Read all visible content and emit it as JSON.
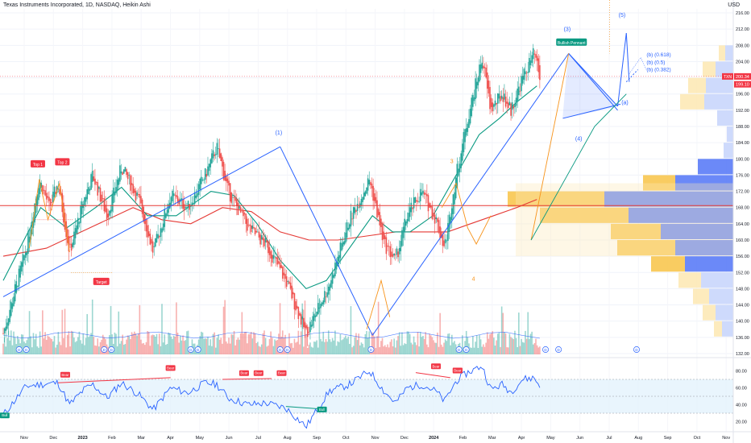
{
  "header": {
    "title": "Texas Instruments Incorporated, 1D, NASDAQ, Heikin Ashi",
    "currency": "USD"
  },
  "colors": {
    "up": "#26a69a",
    "down": "#ef5350",
    "ema_fast": "#089981",
    "ema_slow": "#e53935",
    "wave": "#2962ff",
    "pattern": "#f7931a",
    "rsi": "#2962ff",
    "rsi_band": "#e3f2fd",
    "vp_up": "#f8c650",
    "vp_down": "#5b7cf7",
    "vp_up_light": "#fde9b6",
    "vp_down_light": "#c9d6fc",
    "price_label": "#f23645",
    "pennant": "#089981"
  },
  "chart_data": [
    {
      "type": "candlestick",
      "title": "Texas Instruments Incorporated, 1D, NASDAQ, Heikin Ashi",
      "y_axis": {
        "ticks": [
          132,
          136,
          140,
          144,
          148,
          152,
          156,
          160,
          164,
          168,
          172,
          176,
          180,
          184,
          188,
          192,
          196,
          200,
          204,
          208,
          212,
          216
        ],
        "range": [
          131,
          217
        ],
        "current_price": "200.34",
        "ticker_label": "TXN",
        "extra_label": "199.10"
      },
      "x_axis": {
        "labels": [
          "Nov",
          "Dec",
          "2023",
          "Feb",
          "Mar",
          "Apr",
          "May",
          "Jun",
          "Jul",
          "Aug",
          "Sep",
          "Oct",
          "Nov",
          "Dec",
          "2024",
          "Feb",
          "Mar",
          "Apr",
          "May",
          "Jun",
          "Jul",
          "Aug",
          "Sep",
          "Oct",
          "Nov"
        ]
      },
      "price_path": {
        "months": [
          "Oct 22",
          "Nov",
          "Dec",
          "Jan",
          "Feb",
          "Mar",
          "Apr",
          "May",
          "Jun",
          "Jul",
          "Aug",
          "Sep",
          "Oct",
          "Nov",
          "Dec",
          "Jan",
          "Feb",
          "Mar",
          "Apr",
          "May",
          "Jun",
          "Jul"
        ],
        "anchors": [
          [
            0,
            137
          ],
          [
            0.8,
            158
          ],
          [
            1.25,
            175
          ],
          [
            1.6,
            168
          ],
          [
            1.9,
            174
          ],
          [
            2.3,
            157
          ],
          [
            2.8,
            170
          ],
          [
            3.1,
            176
          ],
          [
            3.6,
            166
          ],
          [
            4.1,
            178
          ],
          [
            4.7,
            170
          ],
          [
            5.2,
            157
          ],
          [
            5.8,
            171
          ],
          [
            6.4,
            168
          ],
          [
            7.0,
            176
          ],
          [
            7.4,
            183
          ],
          [
            7.8,
            172
          ],
          [
            8.5,
            163
          ],
          [
            9.1,
            159
          ],
          [
            9.8,
            150
          ],
          [
            10.5,
            137
          ],
          [
            11.3,
            149
          ],
          [
            12.0,
            165
          ],
          [
            12.7,
            175
          ],
          [
            13.2,
            159
          ],
          [
            13.6,
            155
          ],
          [
            14.0,
            166
          ],
          [
            14.5,
            172
          ],
          [
            15.0,
            165
          ],
          [
            15.3,
            158
          ],
          [
            15.7,
            176
          ],
          [
            16.1,
            190
          ],
          [
            16.6,
            205
          ],
          [
            16.9,
            192
          ],
          [
            17.3,
            196
          ],
          [
            17.6,
            192
          ],
          [
            18.0,
            200
          ],
          [
            18.4,
            206
          ],
          [
            18.6,
            200
          ]
        ]
      },
      "ema_fast_path": [
        [
          0,
          150
        ],
        [
          1.3,
          168
        ],
        [
          2.2,
          163
        ],
        [
          3.2,
          168
        ],
        [
          4.1,
          173
        ],
        [
          5.0,
          166
        ],
        [
          6.0,
          166
        ],
        [
          7.2,
          172
        ],
        [
          8.0,
          171
        ],
        [
          8.8,
          164
        ],
        [
          9.6,
          155
        ],
        [
          10.5,
          148
        ],
        [
          11.2,
          150
        ],
        [
          12.0,
          158
        ],
        [
          12.8,
          166
        ],
        [
          13.5,
          162
        ],
        [
          14.1,
          162
        ],
        [
          14.9,
          166
        ],
        [
          15.7,
          176
        ],
        [
          16.5,
          186
        ],
        [
          17.2,
          190
        ],
        [
          17.8,
          194
        ],
        [
          18.5,
          198
        ]
      ],
      "ema_slow_path": [
        [
          0,
          156
        ],
        [
          1.5,
          158
        ],
        [
          3.0,
          163
        ],
        [
          4.5,
          168
        ],
        [
          5.5,
          165
        ],
        [
          6.5,
          164
        ],
        [
          7.6,
          168
        ],
        [
          8.6,
          167
        ],
        [
          9.6,
          162
        ],
        [
          10.6,
          160
        ],
        [
          11.6,
          160
        ],
        [
          12.6,
          161
        ],
        [
          13.6,
          162
        ],
        [
          14.6,
          162
        ],
        [
          15.4,
          162
        ],
        [
          16.2,
          164
        ],
        [
          17.0,
          166
        ],
        [
          17.8,
          168
        ],
        [
          18.5,
          170
        ]
      ],
      "series": [
        {
          "name": "Bullish Pennant"
        }
      ],
      "annotations": {
        "waves": [
          "(1)",
          "(3)",
          "(4)",
          "(5)",
          "(a)",
          "(b) (0.618)",
          "(b) (0.5)",
          "(b) (0.382)",
          "3",
          "4"
        ],
        "pattern_labels": [
          "Top 1",
          "Top 2",
          "Target",
          "Bullish Pennant"
        ],
        "event_markers": [
          "D",
          "D",
          "D",
          "D",
          "D",
          "D",
          "D",
          "D",
          "D",
          "D",
          "D",
          "D",
          "D"
        ]
      },
      "volume_profile": {
        "levels": [
          138,
          142,
          146,
          150,
          154,
          158,
          162,
          166,
          170,
          174,
          178,
          182,
          186,
          190,
          194,
          198,
          202,
          206
        ],
        "up": [
          10,
          16,
          20,
          28,
          42,
          72,
          62,
          110,
          120,
          40,
          0,
          0,
          0,
          0,
          30,
          22,
          16,
          8
        ],
        "down": [
          14,
          22,
          30,
          40,
          60,
          72,
          90,
          130,
          160,
          72,
          44,
          12,
          8,
          20,
          36,
          34,
          22,
          10
        ]
      }
    },
    {
      "type": "line",
      "title": "RSI",
      "y_axis": {
        "ticks": [
          20.0,
          40.0,
          60.0,
          80.0
        ],
        "range": [
          10,
          90
        ],
        "band": [
          30,
          70
        ]
      },
      "rsi_path": [
        [
          0,
          28
        ],
        [
          0.8,
          62
        ],
        [
          1.3,
          64
        ],
        [
          1.9,
          66
        ],
        [
          2.3,
          40
        ],
        [
          2.8,
          58
        ],
        [
          3.1,
          64
        ],
        [
          3.6,
          48
        ],
        [
          4.1,
          66
        ],
        [
          4.7,
          52
        ],
        [
          5.2,
          34
        ],
        [
          5.8,
          60
        ],
        [
          6.4,
          54
        ],
        [
          7.0,
          66
        ],
        [
          7.4,
          64
        ],
        [
          7.8,
          48
        ],
        [
          8.5,
          40
        ],
        [
          9.1,
          42
        ],
        [
          9.8,
          36
        ],
        [
          10.5,
          14
        ],
        [
          11.3,
          56
        ],
        [
          12.0,
          64
        ],
        [
          12.7,
          80
        ],
        [
          13.2,
          56
        ],
        [
          13.6,
          42
        ],
        [
          14.0,
          60
        ],
        [
          14.5,
          64
        ],
        [
          15.0,
          56
        ],
        [
          15.3,
          44
        ],
        [
          15.7,
          68
        ],
        [
          16.1,
          78
        ],
        [
          16.6,
          86
        ],
        [
          16.9,
          58
        ],
        [
          17.3,
          64
        ],
        [
          17.6,
          55
        ],
        [
          18.0,
          70
        ],
        [
          18.4,
          72
        ],
        [
          18.6,
          62
        ]
      ],
      "signals": [
        "Bull",
        "Bear",
        "Bear",
        "Bear",
        "Bear",
        "Bear",
        "Bear",
        "Bull",
        "Bear",
        "Bear"
      ]
    }
  ]
}
